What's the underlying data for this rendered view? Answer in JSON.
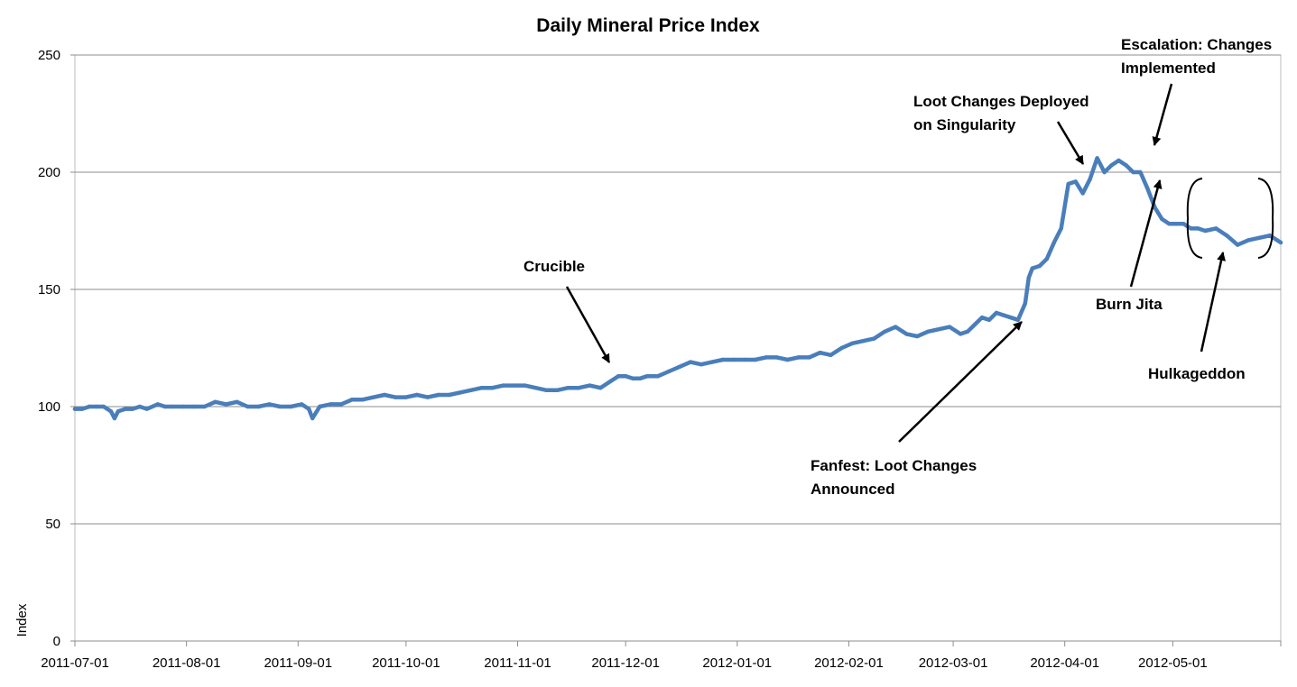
{
  "chart_data": {
    "type": "line",
    "title": "Daily Mineral Price Index",
    "xlabel": "",
    "ylabel": "Index",
    "ylim": [
      0,
      250
    ],
    "y_ticks": [
      0,
      50,
      100,
      150,
      200,
      250
    ],
    "x_ticks": [
      "2011-07-01",
      "2011-08-01",
      "2011-09-01",
      "2011-10-01",
      "2011-11-01",
      "2011-12-01",
      "2012-01-01",
      "2012-02-01",
      "2012-03-01",
      "2012-04-01",
      "2012-05-01"
    ],
    "x_range": [
      "2011-07-01",
      "2012-05-31"
    ],
    "grid": "horizontal",
    "legend": "none",
    "series_color": "#4a7ebb",
    "series": [
      {
        "x": [
          "2011-07-01",
          "2011-07-03",
          "2011-07-05",
          "2011-07-07",
          "2011-07-09",
          "2011-07-11",
          "2011-07-12",
          "2011-07-13",
          "2011-07-15",
          "2011-07-17",
          "2011-07-19",
          "2011-07-21",
          "2011-07-24",
          "2011-07-26",
          "2011-07-28",
          "2011-07-31",
          "2011-08-03",
          "2011-08-06",
          "2011-08-09",
          "2011-08-12",
          "2011-08-15",
          "2011-08-18",
          "2011-08-21",
          "2011-08-24",
          "2011-08-27",
          "2011-08-30",
          "2011-09-02",
          "2011-09-04",
          "2011-09-05",
          "2011-09-07",
          "2011-09-10",
          "2011-09-13",
          "2011-09-16",
          "2011-09-19",
          "2011-09-22",
          "2011-09-25",
          "2011-09-28",
          "2011-10-01",
          "2011-10-04",
          "2011-10-07",
          "2011-10-10",
          "2011-10-13",
          "2011-10-16",
          "2011-10-19",
          "2011-10-22",
          "2011-10-25",
          "2011-10-28",
          "2011-10-31",
          "2011-11-03",
          "2011-11-06",
          "2011-11-09",
          "2011-11-12",
          "2011-11-15",
          "2011-11-18",
          "2011-11-21",
          "2011-11-24",
          "2011-11-27",
          "2011-11-29",
          "2011-12-01",
          "2011-12-03",
          "2011-12-05",
          "2011-12-07",
          "2011-12-10",
          "2011-12-13",
          "2011-12-16",
          "2011-12-19",
          "2011-12-22",
          "2011-12-25",
          "2011-12-28",
          "2011-12-31",
          "2012-01-03",
          "2012-01-06",
          "2012-01-09",
          "2012-01-12",
          "2012-01-15",
          "2012-01-18",
          "2012-01-21",
          "2012-01-24",
          "2012-01-27",
          "2012-01-30",
          "2012-02-02",
          "2012-02-05",
          "2012-02-08",
          "2012-02-11",
          "2012-02-14",
          "2012-02-17",
          "2012-02-20",
          "2012-02-23",
          "2012-02-26",
          "2012-02-29",
          "2012-03-03",
          "2012-03-05",
          "2012-03-07",
          "2012-03-09",
          "2012-03-11",
          "2012-03-13",
          "2012-03-15",
          "2012-03-17",
          "2012-03-19",
          "2012-03-21",
          "2012-03-22",
          "2012-03-23",
          "2012-03-25",
          "2012-03-27",
          "2012-03-29",
          "2012-03-31",
          "2012-04-02",
          "2012-04-04",
          "2012-04-06",
          "2012-04-08",
          "2012-04-10",
          "2012-04-12",
          "2012-04-14",
          "2012-04-16",
          "2012-04-18",
          "2012-04-20",
          "2012-04-22",
          "2012-04-24",
          "2012-04-26",
          "2012-04-28",
          "2012-04-30",
          "2012-05-02",
          "2012-05-04",
          "2012-05-06",
          "2012-05-08",
          "2012-05-10",
          "2012-05-13",
          "2012-05-16",
          "2012-05-19",
          "2012-05-22",
          "2012-05-25",
          "2012-05-28",
          "2012-05-31"
        ],
        "values": [
          99,
          99,
          100,
          100,
          100,
          98,
          95,
          98,
          99,
          99,
          100,
          99,
          101,
          100,
          100,
          100,
          100,
          100,
          102,
          101,
          102,
          100,
          100,
          101,
          100,
          100,
          101,
          99,
          95,
          100,
          101,
          101,
          103,
          103,
          104,
          105,
          104,
          104,
          105,
          104,
          105,
          105,
          106,
          107,
          108,
          108,
          109,
          109,
          109,
          108,
          107,
          107,
          108,
          108,
          109,
          108,
          111,
          113,
          113,
          112,
          112,
          113,
          113,
          115,
          117,
          119,
          118,
          119,
          120,
          120,
          120,
          120,
          121,
          121,
          120,
          121,
          121,
          123,
          122,
          125,
          127,
          128,
          129,
          132,
          134,
          131,
          130,
          132,
          133,
          134,
          131,
          132,
          135,
          138,
          137,
          140,
          139,
          138,
          137,
          144,
          155,
          159,
          160,
          163,
          170,
          176,
          195,
          196,
          191,
          197,
          206,
          200,
          203,
          205,
          203,
          200,
          200,
          193,
          185,
          180,
          178,
          178,
          178,
          176,
          176,
          175,
          176,
          173,
          169,
          171,
          172,
          173,
          170
        ]
      }
    ],
    "annotations": [
      {
        "lines": [
          "Crucible"
        ]
      },
      {
        "lines": [
          "Fanfest:  Loot Changes",
          "Announced"
        ]
      },
      {
        "lines": [
          "Loot Changes Deployed",
          "on Singularity"
        ]
      },
      {
        "lines": [
          "Escalation:  Changes",
          "Implemented"
        ]
      },
      {
        "lines": [
          "Burn Jita"
        ]
      },
      {
        "lines": [
          "Hulkageddon"
        ]
      }
    ]
  }
}
